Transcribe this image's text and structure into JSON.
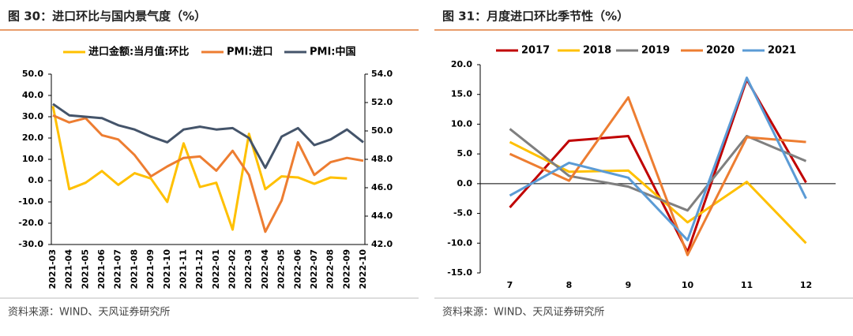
{
  "chart_data": [
    {
      "type": "line",
      "title": "图 30：进口环比与国内景气度（%）",
      "source": "资料来源：WIND、天风证券研究所",
      "categories": [
        "2021-03",
        "2021-04",
        "2021-05",
        "2021-06",
        "2021-07",
        "2021-08",
        "2021-09",
        "2021-10",
        "2021-11",
        "2021-12",
        "2022-01",
        "2022-02",
        "2022-03",
        "2022-04",
        "2022-05",
        "2022-06",
        "2022-07",
        "2022-08",
        "2022-09",
        "2022-10"
      ],
      "series": [
        {
          "name": "进口金额:当月值:环比",
          "color": "#ffc000",
          "values": [
            35,
            -4,
            -1,
            4.5,
            -2,
            3.5,
            1,
            -10,
            17.5,
            -3,
            -1,
            -23,
            22,
            -4,
            2,
            1.5,
            -1.5,
            1.5,
            1,
            null
          ]
        },
        {
          "name": "PMI:进口",
          "color": "#ed7d31",
          "axis": "y2",
          "values": [
            51.1,
            50.6,
            50.9,
            49.7,
            49.4,
            48.3,
            46.8,
            47.5,
            48.1,
            48.2,
            47.2,
            48.6,
            46.9,
            42.9,
            45.1,
            49.2,
            46.9,
            47.8,
            48.1,
            47.9
          ]
        },
        {
          "name": "PMI:中国",
          "color": "#44546a",
          "axis": "y2",
          "values": [
            51.9,
            51.1,
            51.0,
            50.9,
            50.4,
            50.1,
            49.6,
            49.2,
            50.1,
            50.3,
            50.1,
            50.2,
            49.5,
            47.4,
            49.6,
            50.2,
            49.0,
            49.4,
            50.1,
            49.2
          ]
        }
      ],
      "ylim": [
        -30,
        50
      ],
      "yticks": [
        {
          "value": -30,
          "label": "-30.0"
        },
        {
          "value": -20,
          "label": "-20.0"
        },
        {
          "value": -10,
          "label": "-10.0"
        },
        {
          "value": 0,
          "label": "0.0"
        },
        {
          "value": 10,
          "label": "10.0"
        },
        {
          "value": 20,
          "label": "20.0"
        },
        {
          "value": 30,
          "label": "30.0"
        },
        {
          "value": 40,
          "label": "40.0"
        },
        {
          "value": 50,
          "label": "50.0"
        }
      ],
      "y2lim": [
        42,
        54
      ],
      "y2ticks": [
        {
          "value": 42,
          "label": "42.0"
        },
        {
          "value": 44,
          "label": "44.0"
        },
        {
          "value": 46,
          "label": "46.0"
        },
        {
          "value": 48,
          "label": "48.0"
        },
        {
          "value": 50,
          "label": "50.0"
        },
        {
          "value": 52,
          "label": "52.0"
        },
        {
          "value": 54,
          "label": "54.0"
        }
      ]
    },
    {
      "type": "line",
      "title": "图 31：月度进口环比季节性（%）",
      "source": "资料来源：WIND、天风证券研究所",
      "categories": [
        "7",
        "8",
        "9",
        "10",
        "11",
        "12"
      ],
      "series": [
        {
          "name": "2017",
          "color": "#c00000",
          "values": [
            -4,
            7.2,
            8,
            -11.5,
            17.5,
            0.2
          ]
        },
        {
          "name": "2018",
          "color": "#ffc000",
          "values": [
            7,
            2,
            2.2,
            -6.5,
            0.3,
            -10
          ]
        },
        {
          "name": "2019",
          "color": "#7f7f7f",
          "values": [
            9.2,
            1.3,
            -0.5,
            -4.5,
            8,
            3.8
          ]
        },
        {
          "name": "2020",
          "color": "#ed7d31",
          "values": [
            5,
            0.5,
            14.5,
            -12,
            7.8,
            7
          ]
        },
        {
          "name": "2021",
          "color": "#5b9bd5",
          "values": [
            -2,
            3.5,
            1,
            -9.5,
            17.8,
            -2.5
          ]
        }
      ],
      "ylim": [
        -15,
        20
      ],
      "yticks": [
        {
          "value": -15,
          "label": "-15.0"
        },
        {
          "value": -10,
          "label": "-10.0"
        },
        {
          "value": -5,
          "label": "-5.0"
        },
        {
          "value": 0,
          "label": "0.0"
        },
        {
          "value": 5,
          "label": "5.0"
        },
        {
          "value": 10,
          "label": "10.0"
        },
        {
          "value": 15,
          "label": "15.0"
        },
        {
          "value": 20,
          "label": "20.0"
        }
      ]
    }
  ]
}
